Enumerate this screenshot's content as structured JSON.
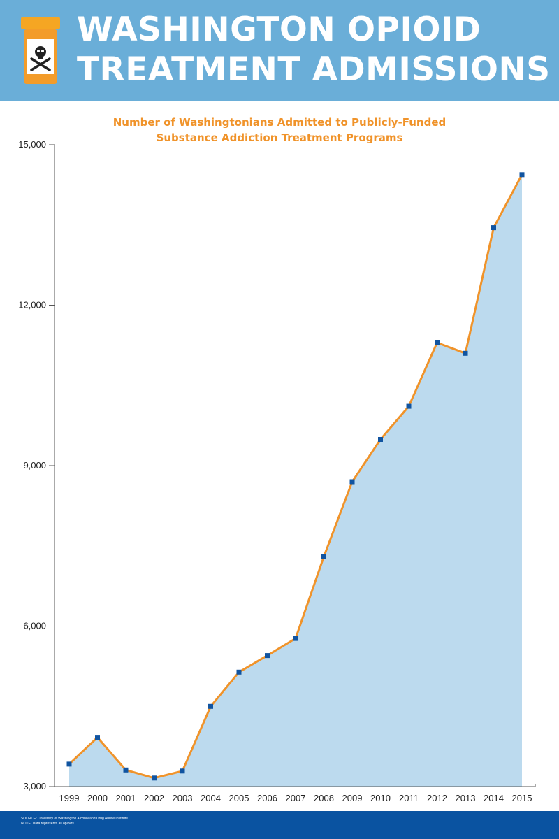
{
  "header": {
    "title_line1": "WASHINGTON OPIOID",
    "title_line2": "TREATMENT ADMISSIONS",
    "icon": "poison-bottle-icon",
    "background_color": "#6aaed8"
  },
  "chart_data": {
    "type": "area",
    "title_line1": "Number of Washingtonians Admitted to Publicly-Funded",
    "title_line2": "Substance Addiction Treatment Programs",
    "xlabel": "",
    "ylabel": "",
    "categories": [
      "1999",
      "2000",
      "2001",
      "2002",
      "2003",
      "2004",
      "2005",
      "2006",
      "2007",
      "2008",
      "2009",
      "2010",
      "2011",
      "2012",
      "2013",
      "2014",
      "2015"
    ],
    "values": [
      3420,
      3920,
      3310,
      3160,
      3290,
      4500,
      5140,
      5450,
      5770,
      7300,
      8700,
      9490,
      10110,
      11300,
      11100,
      13450,
      14440
    ],
    "ylim": [
      3000,
      15000
    ],
    "yticks": [
      3000,
      6000,
      9000,
      12000,
      15000
    ],
    "ytick_labels": [
      "3,000",
      "6,000",
      "9,000",
      "12,000",
      "15,000"
    ],
    "grid": false,
    "colors": {
      "line": "#f0932a",
      "fill": "#bcdaee",
      "marker": "#1154a0",
      "title": "#f0932a"
    }
  },
  "footer": {
    "source": "SOURCE: University of Washington Alcohol and Drug Abuse Institute",
    "note": "NOTE: Data represents all opioids",
    "background_color": "#0a53a1"
  }
}
